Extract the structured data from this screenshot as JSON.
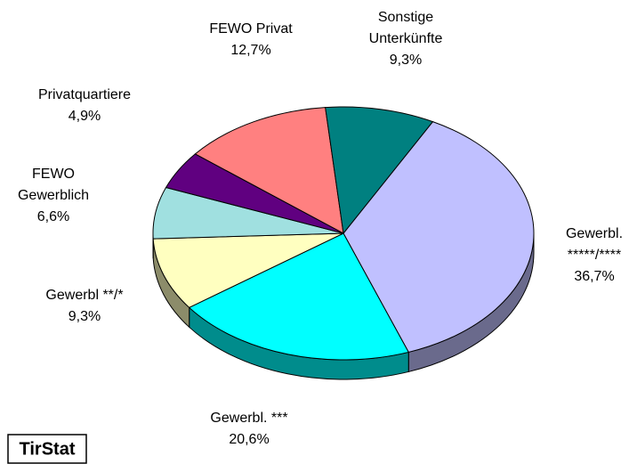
{
  "chart_data": {
    "type": "pie",
    "categories": [
      "Gewerbl.\n*****/****",
      "Gewerbl. ***",
      "Gewerbl **/*",
      "FEWO\nGewerblich",
      "Privatquartiere",
      "FEWO Privat",
      "Sonstige\nUnterkünfte"
    ],
    "values": [
      36.7,
      20.6,
      9.3,
      6.6,
      4.9,
      12.7,
      9.3
    ],
    "value_labels": [
      "36,7%",
      "20,6%",
      "9,3%",
      "6,6%",
      "4,9%",
      "12,7%",
      "9,3%"
    ],
    "colors": [
      "#c0c0ff",
      "#00ffff",
      "#ffffc0",
      "#a0e0e0",
      "#600080",
      "#ff8080",
      "#008080"
    ]
  },
  "footer": {
    "brand": "TirStat"
  }
}
